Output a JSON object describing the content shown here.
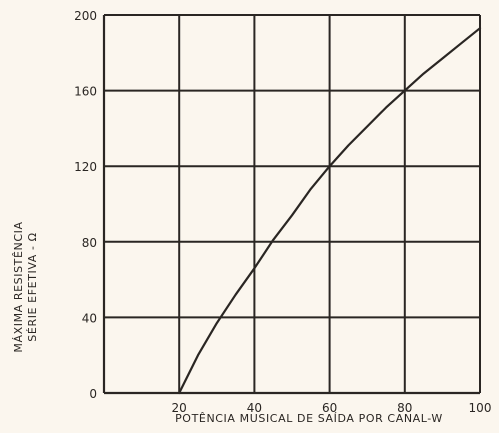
{
  "chart_data": {
    "type": "line",
    "xlabel": "POTÊNCIA MUSICAL DE SAÍDA POR CANAL-W",
    "ylabel_line1": "MÁXIMA RESISTÊNCIA",
    "ylabel_line2": "SÉRIE EFETIVA - Ω",
    "xlim": [
      0,
      100
    ],
    "ylim": [
      0,
      200
    ],
    "x_ticks": [
      20,
      40,
      60,
      80,
      100
    ],
    "y_ticks": [
      0,
      40,
      80,
      120,
      160,
      200
    ],
    "grid": true,
    "series": [
      {
        "x": [
          20,
          25,
          30,
          35,
          40,
          45,
          50,
          55,
          60,
          65,
          70,
          75,
          80,
          85,
          90,
          95,
          100
        ],
        "y": [
          0,
          20,
          37,
          52,
          66,
          81,
          94,
          108,
          120,
          131,
          141,
          151,
          160,
          169,
          177,
          185,
          193
        ]
      }
    ],
    "color": "#2a2623"
  }
}
